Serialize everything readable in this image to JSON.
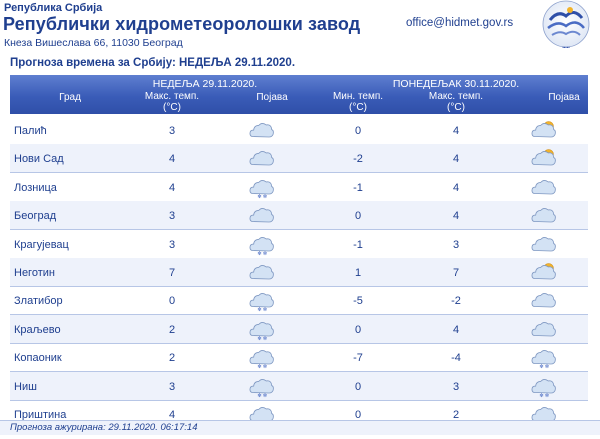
{
  "header": {
    "republic": "Република Србија",
    "institution": "Републички хидрометеоролошки завод",
    "address": "Кнеза Вишеслава 66, 11030 Београд",
    "email": "office@hidmet.gov.rs",
    "logo_text": "РХМЗ СРБИЈЕ"
  },
  "subtitle": "Прогноза времена за Србију: НЕДЕЉА 29.11.2020.",
  "columns": {
    "city": "Град",
    "day1": "НЕДЕЉА 29.11.2020.",
    "day2": "ПОНЕДЕЉАК 30.11.2020.",
    "max_temp": "Макс. темп.",
    "min_temp": "Мин. темп.",
    "unit": "(°C)",
    "phenomena": "Појава"
  },
  "rows": [
    {
      "city": "Палић",
      "max1": "3",
      "icon1": "cloudy-icon",
      "min2": "0",
      "max2": "4",
      "icon2": "partly-sunny-icon"
    },
    {
      "city": "Нови Сад",
      "max1": "4",
      "icon1": "cloudy-icon",
      "min2": "-2",
      "max2": "4",
      "icon2": "partly-sunny-icon"
    },
    {
      "city": "Лозница",
      "max1": "4",
      "icon1": "snow-cloud-icon",
      "min2": "-1",
      "max2": "4",
      "icon2": "cloudy-icon"
    },
    {
      "city": "Београд",
      "max1": "3",
      "icon1": "cloudy-icon",
      "min2": "0",
      "max2": "4",
      "icon2": "cloudy-icon"
    },
    {
      "city": "Крагујевац",
      "max1": "3",
      "icon1": "snow-cloud-icon",
      "min2": "-1",
      "max2": "3",
      "icon2": "cloudy-icon"
    },
    {
      "city": "Неготин",
      "max1": "7",
      "icon1": "cloudy-icon",
      "min2": "1",
      "max2": "7",
      "icon2": "partly-sunny-icon"
    },
    {
      "city": "Златибор",
      "max1": "0",
      "icon1": "snow-cloud-icon",
      "min2": "-5",
      "max2": "-2",
      "icon2": "cloudy-icon"
    },
    {
      "city": "Краљево",
      "max1": "2",
      "icon1": "snow-cloud-icon",
      "min2": "0",
      "max2": "4",
      "icon2": "cloudy-icon"
    },
    {
      "city": "Копаоник",
      "max1": "2",
      "icon1": "snow-cloud-icon",
      "min2": "-7",
      "max2": "-4",
      "icon2": "snow-cloud-icon"
    },
    {
      "city": "Ниш",
      "max1": "3",
      "icon1": "snow-cloud-icon",
      "min2": "0",
      "max2": "3",
      "icon2": "snow-cloud-icon"
    },
    {
      "city": "Приштина",
      "max1": "4",
      "icon1": "snow-cloud-icon",
      "min2": "0",
      "max2": "2",
      "icon2": "snow-cloud-icon"
    }
  ],
  "footer": {
    "updated": "Прогноза ажурирана:  29.11.2020. 06:17:14"
  },
  "colors": {
    "text": "#1f3f8f",
    "header_bg": "#3a5cb8",
    "row_alt": "#eef2fb",
    "cloud": "#c9dcf2",
    "sun": "#f2b32a"
  }
}
